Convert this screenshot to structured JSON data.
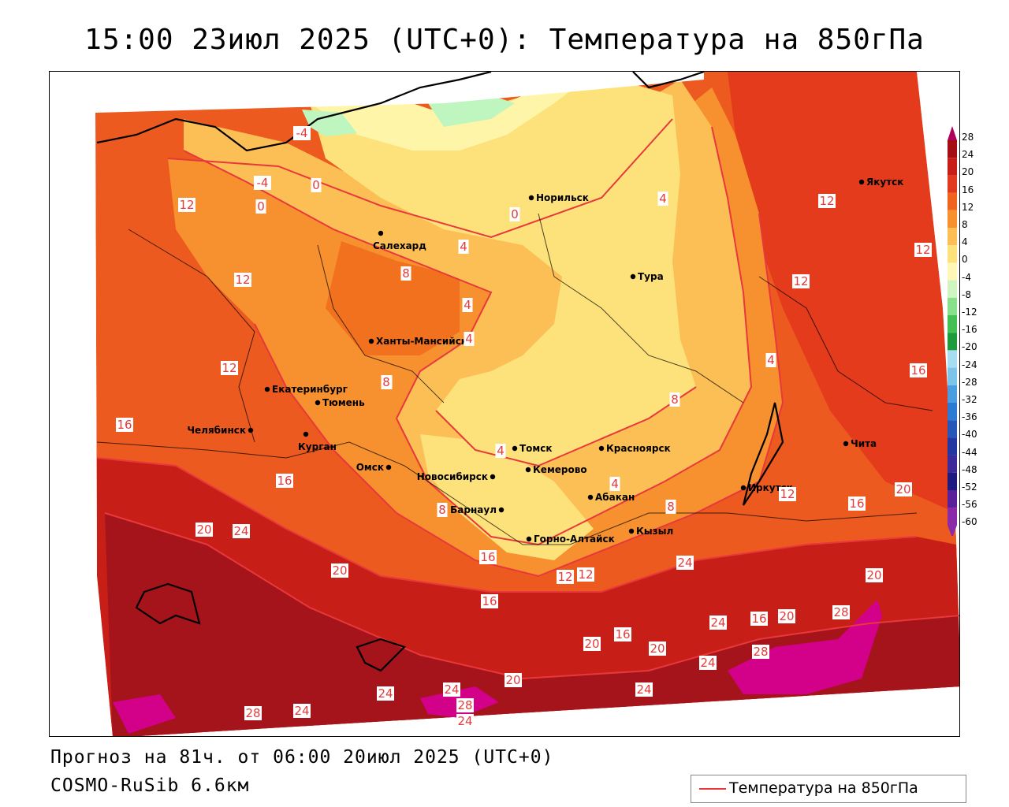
{
  "title": "15:00 23июл 2025 (UTC+0): Температура на 850гПа",
  "footer": {
    "forecast": "Прогноз на 81ч. от 06:00 20июл 2025 (UTC+0)",
    "model": "COSMO-RuSib 6.6км"
  },
  "legend": {
    "label": "Температура на 850гПа",
    "line_color": "#e8383c"
  },
  "colorbar": {
    "ticks": [
      "28",
      "24",
      "20",
      "16",
      "12",
      "8",
      "4",
      "0",
      "-4",
      "-8",
      "-12",
      "-16",
      "-20",
      "-24",
      "-28",
      "-32",
      "-36",
      "-40",
      "-44",
      "-48",
      "-52",
      "-56",
      "-60"
    ],
    "colors": [
      "#b0005a",
      "#a30f14",
      "#c81e18",
      "#e23a1e",
      "#f0641e",
      "#f7902e",
      "#fbbf55",
      "#fde17a",
      "#fff7b6",
      "#cff5c0",
      "#88e08a",
      "#44c054",
      "#1c9c3a",
      "#a8dcf0",
      "#7cc4ea",
      "#4a9ee0",
      "#2b7bd4",
      "#2557b8",
      "#2238a0",
      "#3b2a9a",
      "#1d1a80",
      "#5a1f9a",
      "#8a2aa8"
    ]
  },
  "cities": [
    {
      "name": "Норильск"
    },
    {
      "name": "Салехард"
    },
    {
      "name": "Тура"
    },
    {
      "name": "Якутск"
    },
    {
      "name": "Ханты-Мансийск"
    },
    {
      "name": "Екатеринбург"
    },
    {
      "name": "Тюмень"
    },
    {
      "name": "Челябинск"
    },
    {
      "name": "Курган"
    },
    {
      "name": "Омск"
    },
    {
      "name": "Томск"
    },
    {
      "name": "Красноярск"
    },
    {
      "name": "Новосибирск"
    },
    {
      "name": "Кемерово"
    },
    {
      "name": "Абакан"
    },
    {
      "name": "Барнаул"
    },
    {
      "name": "Горно-Алтайск"
    },
    {
      "name": "Кызыл"
    },
    {
      "name": "Иркутск"
    },
    {
      "name": "Чита"
    }
  ],
  "contour_labels": [
    "-4",
    "0",
    "-4",
    "0",
    "4",
    "0",
    "4",
    "4",
    "12",
    "8",
    "12",
    "12",
    "12",
    "4",
    "8",
    "4",
    "8",
    "12",
    "12",
    "16",
    "16",
    "8",
    "4",
    "4",
    "8",
    "8",
    "12",
    "16",
    "20",
    "16",
    "20",
    "24",
    "20",
    "16",
    "12",
    "24",
    "20",
    "12",
    "16",
    "20",
    "20",
    "16",
    "24",
    "16",
    "20",
    "28",
    "28",
    "24",
    "20",
    "28",
    "24",
    "24",
    "24",
    "24",
    "28",
    "24"
  ],
  "colors": {
    "background": "#ffffff",
    "frame": "#000000",
    "contour": "#e8383c"
  }
}
